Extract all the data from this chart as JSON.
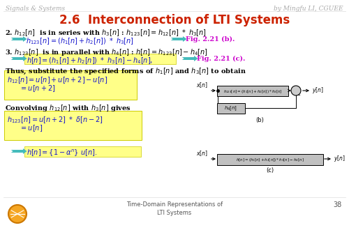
{
  "title": "2.6  Interconnection of LTI Systems",
  "header_left": "Signals & Systems",
  "header_right": "by Mingfu LI, CGUEE",
  "footer_text": "Time-Domain Representations of\nLTI Systems",
  "footer_page": "38",
  "bg_color": "#ffffff",
  "title_color": "#cc2200",
  "header_color": "#aaaaaa",
  "footer_color": "#555555",
  "blue_color": "#1111cc",
  "magenta_color": "#cc00cc",
  "arrow_color": "#44bbbb",
  "yellow_bg": "#ffff88",
  "gray_bg": "#c0c0c0"
}
